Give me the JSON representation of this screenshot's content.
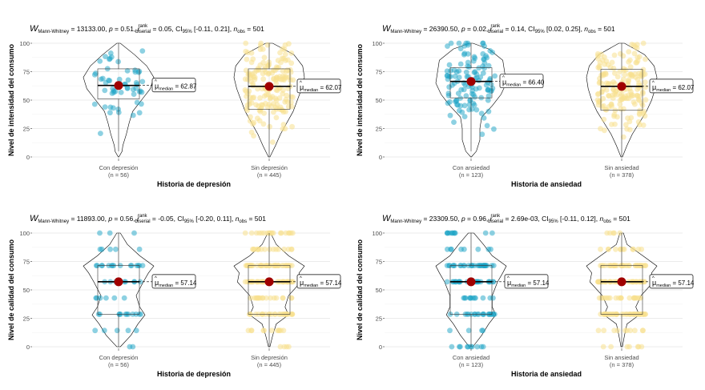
{
  "colors": {
    "group1": "#1BA3C6",
    "group2": "#F8E08E",
    "median_dot": "#A00000",
    "grid": "#EBEBEB",
    "text": "#333333",
    "axis_text": "#4D4D4D"
  },
  "chart_data": [
    {
      "type": "violin-box-scatter",
      "subtitle": {
        "w_label": "W",
        "w_sub": "Mann-Whitney",
        "w_value": " = 13133.00, ",
        "p_label": "p",
        "p_value": " = 0.51, ",
        "r_label": "r",
        "r_sup": "rank",
        "r_sub": "biserial",
        "r_value": " = 0.05, ",
        "ci_label": "CI",
        "ci_sub": "95%",
        "ci_value": " [-0.11, 0.21], ",
        "n_label": "n",
        "n_sub": "obs",
        "n_value": " = 501"
      },
      "ylabel": "Nivel de intensidad del consumo",
      "xlabel": "Historia de depresión",
      "ylim": [
        0,
        100
      ],
      "yticks": [
        "0",
        "25",
        "50",
        "75",
        "100"
      ],
      "groups": [
        {
          "name": "Con depresión",
          "n_text": "(n = 56)",
          "color": "#1BA3C6",
          "q1": 51,
          "median": 62.87,
          "q3": 77.5,
          "wmin": 5,
          "wmax": 100,
          "violin": [
            [
              0,
              0.01
            ],
            [
              5,
              0.1
            ],
            [
              10,
              0.12
            ],
            [
              20,
              0.22
            ],
            [
              30,
              0.3
            ],
            [
              40,
              0.4
            ],
            [
              50,
              0.65
            ],
            [
              60,
              0.9
            ],
            [
              70,
              1.0
            ],
            [
              80,
              0.8
            ],
            [
              90,
              0.45
            ],
            [
              100,
              0.05
            ]
          ],
          "label_prefix": "μ",
          "label_sub": "median",
          "label_value": " = 62.87"
        },
        {
          "name": "Sin depresión",
          "n_text": "(n = 445)",
          "color": "#F8E08E",
          "q1": 42,
          "median": 62.07,
          "q3": 77.5,
          "wmin": 0,
          "wmax": 100,
          "violin": [
            [
              0,
              0.02
            ],
            [
              10,
              0.18
            ],
            [
              20,
              0.32
            ],
            [
              30,
              0.5
            ],
            [
              40,
              0.68
            ],
            [
              50,
              0.8
            ],
            [
              60,
              0.92
            ],
            [
              70,
              1.0
            ],
            [
              80,
              0.95
            ],
            [
              90,
              0.7
            ],
            [
              100,
              0.1
            ]
          ],
          "label_prefix": "μ",
          "label_sub": "median",
          "label_value": " = 62.07"
        }
      ]
    },
    {
      "type": "violin-box-scatter",
      "subtitle": {
        "w_label": "W",
        "w_sub": "Mann-Whitney",
        "w_value": " = 26390.50, ",
        "p_label": "p",
        "p_value": " = 0.02, ",
        "r_label": "r",
        "r_sup": "rank",
        "r_sub": "biserial",
        "r_value": " = 0.14, ",
        "ci_label": "CI",
        "ci_sub": "95%",
        "ci_value": " [0.02, 0.25], ",
        "n_label": "n",
        "n_sub": "obs",
        "n_value": " = 501"
      },
      "ylabel": "Nivel de intensidad del consumo",
      "xlabel": "Historia de ansiedad",
      "ylim": [
        0,
        100
      ],
      "yticks": [
        "0",
        "25",
        "50",
        "75",
        "100"
      ],
      "groups": [
        {
          "name": "Con ansiedad",
          "n_text": "(n = 123)",
          "color": "#1BA3C6",
          "q1": 52,
          "median": 66.4,
          "q3": 78.5,
          "wmin": 5,
          "wmax": 100,
          "violin": [
            [
              0,
              0.01
            ],
            [
              5,
              0.15
            ],
            [
              15,
              0.25
            ],
            [
              25,
              0.25
            ],
            [
              35,
              0.3
            ],
            [
              45,
              0.6
            ],
            [
              55,
              0.85
            ],
            [
              65,
              1.0
            ],
            [
              75,
              0.95
            ],
            [
              85,
              0.9
            ],
            [
              95,
              0.5
            ],
            [
              100,
              0.05
            ]
          ],
          "label_prefix": "μ",
          "label_sub": "median",
          "label_value": " = 66.40"
        },
        {
          "name": "Sin ansiedad",
          "n_text": "(n = 378)",
          "color": "#F8E08E",
          "q1": 41,
          "median": 62.07,
          "q3": 77,
          "wmin": 0,
          "wmax": 100,
          "violin": [
            [
              0,
              0.02
            ],
            [
              10,
              0.15
            ],
            [
              20,
              0.3
            ],
            [
              30,
              0.5
            ],
            [
              40,
              0.7
            ],
            [
              50,
              0.85
            ],
            [
              60,
              0.95
            ],
            [
              70,
              1.0
            ],
            [
              80,
              0.92
            ],
            [
              90,
              0.65
            ],
            [
              100,
              0.08
            ]
          ],
          "label_prefix": "μ",
          "label_sub": "median",
          "label_value": " = 62.07"
        }
      ]
    },
    {
      "type": "violin-box-scatter",
      "subtitle": {
        "w_label": "W",
        "w_sub": "Mann-Whitney",
        "w_value": " = 11893.00, ",
        "p_label": "p",
        "p_value": " = 0.56, ",
        "r_label": "r",
        "r_sup": "rank",
        "r_sub": "biserial",
        "r_value": " = -0.05, ",
        "ci_label": "CI",
        "ci_sub": "95%",
        "ci_value": " [-0.20, 0.11], ",
        "n_label": "n",
        "n_sub": "obs",
        "n_value": " = 501"
      },
      "ylabel": "Nivel de calidad del consumo",
      "xlabel": "Historia de depresión",
      "ylim": [
        0,
        100
      ],
      "yticks": [
        "0",
        "25",
        "50",
        "75",
        "100"
      ],
      "groups": [
        {
          "name": "Con depresión",
          "n_text": "(n = 56)",
          "color": "#1BA3C6",
          "q1": 28.57,
          "median": 57.14,
          "q3": 71.43,
          "wmin": 0,
          "wmax": 100,
          "violin": [
            [
              0,
              0.05
            ],
            [
              10,
              0.35
            ],
            [
              20,
              0.55
            ],
            [
              28,
              0.75
            ],
            [
              35,
              0.6
            ],
            [
              45,
              0.5
            ],
            [
              57,
              0.7
            ],
            [
              65,
              0.85
            ],
            [
              71,
              1.0
            ],
            [
              80,
              0.6
            ],
            [
              90,
              0.25
            ],
            [
              100,
              0.05
            ]
          ],
          "label_prefix": "μ",
          "label_sub": "median",
          "label_value": " = 57.14"
        },
        {
          "name": "Sin depresión",
          "n_text": "(n = 445)",
          "color": "#F8E08E",
          "q1": 28.57,
          "median": 57.14,
          "q3": 71.43,
          "wmin": 0,
          "wmax": 100,
          "violin": [
            [
              0,
              0.02
            ],
            [
              10,
              0.1
            ],
            [
              20,
              0.2
            ],
            [
              28,
              0.55
            ],
            [
              35,
              0.45
            ],
            [
              45,
              0.55
            ],
            [
              57,
              0.9
            ],
            [
              65,
              0.85
            ],
            [
              71,
              1.0
            ],
            [
              80,
              0.55
            ],
            [
              90,
              0.2
            ],
            [
              100,
              0.04
            ]
          ],
          "label_prefix": "μ",
          "label_sub": "median",
          "label_value": " = 57.14"
        }
      ]
    },
    {
      "type": "violin-box-scatter",
      "subtitle": {
        "w_label": "W",
        "w_sub": "Mann-Whitney",
        "w_value": " = 23309.50, ",
        "p_label": "p",
        "p_value": " = 0.96, ",
        "r_label": "r",
        "r_sup": "rank",
        "r_sub": "biserial",
        "r_value": " = 2.69e-03, ",
        "ci_label": "CI",
        "ci_sub": "95%",
        "ci_value": " [-0.11, 0.12], ",
        "n_label": "n",
        "n_sub": "obs",
        "n_value": " = 501"
      },
      "ylabel": "Nivel de calidad del consumo",
      "xlabel": "Historia de ansiedad",
      "ylim": [
        0,
        100
      ],
      "yticks": [
        "0",
        "25",
        "50",
        "75",
        "100"
      ],
      "groups": [
        {
          "name": "Con ansiedad",
          "n_text": "(n = 123)",
          "color": "#1BA3C6",
          "q1": 28.57,
          "median": 57.14,
          "q3": 71.43,
          "wmin": 0,
          "wmax": 100,
          "violin": [
            [
              0,
              0.05
            ],
            [
              10,
              0.3
            ],
            [
              20,
              0.5
            ],
            [
              28,
              0.7
            ],
            [
              35,
              0.6
            ],
            [
              45,
              0.6
            ],
            [
              57,
              0.75
            ],
            [
              65,
              0.9
            ],
            [
              71,
              1.0
            ],
            [
              80,
              0.6
            ],
            [
              90,
              0.35
            ],
            [
              100,
              0.08
            ]
          ],
          "label_prefix": "μ",
          "label_sub": "median",
          "label_value": " = 57.14"
        },
        {
          "name": "Sin ansiedad",
          "n_text": "(n = 378)",
          "color": "#F8E08E",
          "q1": 28.57,
          "median": 57.14,
          "q3": 71.43,
          "wmin": 0,
          "wmax": 100,
          "violin": [
            [
              0,
              0.02
            ],
            [
              10,
              0.08
            ],
            [
              20,
              0.15
            ],
            [
              28,
              0.5
            ],
            [
              35,
              0.4
            ],
            [
              45,
              0.55
            ],
            [
              57,
              0.9
            ],
            [
              65,
              0.85
            ],
            [
              71,
              1.0
            ],
            [
              80,
              0.6
            ],
            [
              90,
              0.15
            ],
            [
              100,
              0.05
            ]
          ],
          "label_prefix": "μ",
          "label_sub": "median",
          "label_value": " = 57.14"
        }
      ]
    }
  ]
}
